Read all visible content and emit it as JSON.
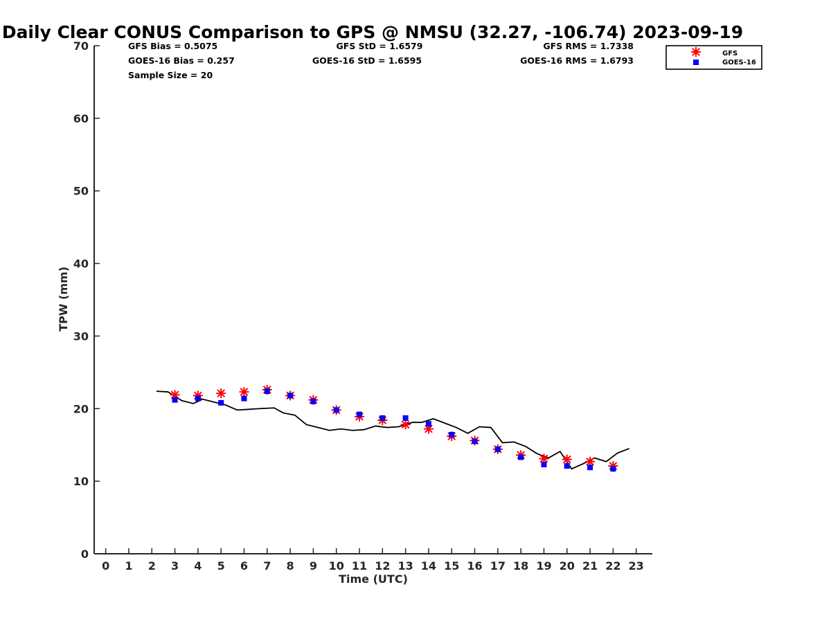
{
  "chart_data": {
    "type": "scatter",
    "title": "Daily Clear CONUS Comparison to GPS @ NMSU (32.27, -106.74) 2023-09-19",
    "xlabel": "Time (UTC)",
    "ylabel": "TPW (mm)",
    "xlim": [
      -0.5,
      23.7
    ],
    "ylim": [
      0,
      70
    ],
    "xticks": [
      0,
      1,
      2,
      3,
      4,
      5,
      6,
      7,
      8,
      9,
      10,
      11,
      12,
      13,
      14,
      15,
      16,
      17,
      18,
      19,
      20,
      21,
      22,
      23
    ],
    "yticks": [
      0,
      10,
      20,
      30,
      40,
      50,
      60,
      70
    ],
    "grid": false,
    "legend_position": "top-right",
    "stats": [
      [
        "GFS Bias = 0.5075",
        "GFS StD = 1.6579",
        "GFS RMS = 1.7338"
      ],
      [
        "GOES-16 Bias = 0.257",
        "GOES-16 StD = 1.6595",
        "GOES-16 RMS = 1.6793"
      ],
      [
        "Sample Size = 20",
        "",
        ""
      ]
    ],
    "series": [
      {
        "name": "GFS",
        "marker": "asterisk",
        "color": "#ff0000",
        "x": [
          3,
          4,
          5,
          6,
          7,
          8,
          9,
          10,
          11,
          12,
          13,
          14,
          15,
          16,
          17,
          18,
          19,
          20,
          21,
          22
        ],
        "y": [
          21.9,
          21.8,
          22.1,
          22.3,
          22.6,
          21.8,
          21.2,
          19.8,
          18.9,
          18.4,
          17.8,
          17.2,
          16.2,
          15.6,
          14.4,
          13.6,
          13.1,
          13.0,
          12.7,
          12.1
        ]
      },
      {
        "name": "GOES-16",
        "marker": "square",
        "color": "#0000ff",
        "x": [
          3,
          4,
          5,
          6,
          7,
          8,
          9,
          10,
          11,
          12,
          13,
          14,
          15,
          16,
          17,
          18,
          19,
          20,
          21,
          22
        ],
        "y": [
          21.2,
          21.4,
          20.8,
          21.4,
          22.4,
          21.8,
          21.0,
          19.8,
          19.2,
          18.7,
          18.7,
          17.9,
          16.4,
          15.5,
          14.4,
          13.3,
          12.3,
          12.1,
          11.9,
          11.7
        ]
      },
      {
        "type": "line",
        "color": "#000000",
        "x": [
          2.2,
          2.7,
          3.3,
          3.8,
          4.2,
          4.7,
          5.2,
          5.7,
          6.2,
          6.7,
          7.3,
          7.7,
          8.2,
          8.7,
          9.2,
          9.7,
          10.2,
          10.7,
          11.2,
          11.7,
          12.2,
          12.7,
          13.3,
          13.7,
          14.2,
          14.7,
          15.2,
          15.7,
          16.2,
          16.7,
          17.2,
          17.7,
          18.2,
          18.7,
          19.2,
          19.7,
          20.2,
          20.7,
          21.2,
          21.7,
          22.2,
          22.7
        ],
        "y": [
          22.4,
          22.3,
          21.1,
          20.7,
          21.3,
          20.9,
          20.5,
          19.8,
          19.9,
          20.0,
          20.1,
          19.4,
          19.1,
          17.8,
          17.4,
          17.0,
          17.2,
          17.0,
          17.1,
          17.6,
          17.4,
          17.5,
          18.1,
          18.1,
          18.6,
          18.0,
          17.4,
          16.6,
          17.5,
          17.4,
          15.3,
          15.4,
          14.8,
          13.8,
          13.2,
          14.1,
          11.7,
          12.4,
          13.2,
          12.7,
          13.9,
          14.5
        ]
      }
    ]
  }
}
